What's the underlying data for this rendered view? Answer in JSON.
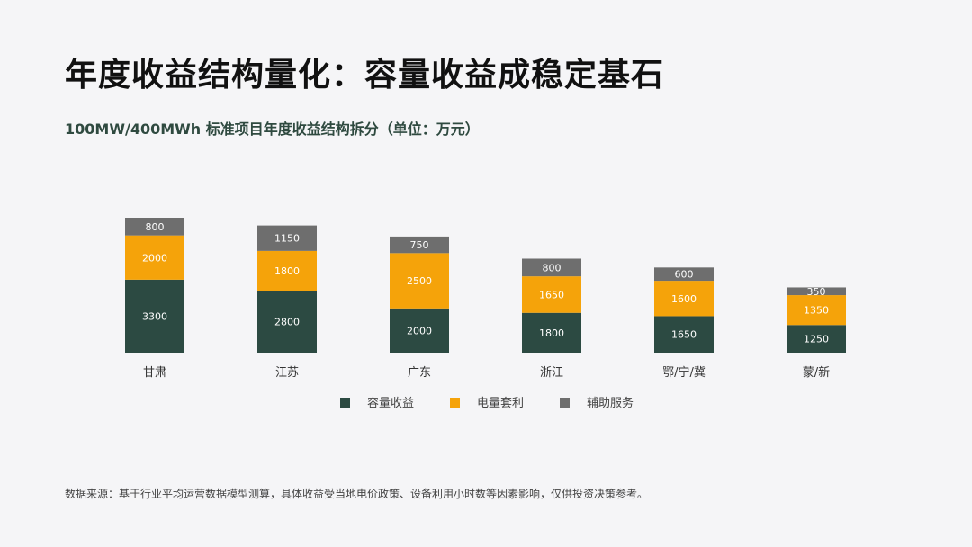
{
  "title": "年度收益结构量化：容量收益成稳定基石",
  "subtitle": "100MW/400MWh 标准项目年度收益结构拆分（单位：万元）",
  "footer": "数据来源：基于行业平均运营数据模型测算，具体收益受当地电价政策、设备利用小时数等因素影响，仅供投资决策参考。",
  "colors": {
    "capacity": "#2c4a42",
    "arbitrage": "#f5a30a",
    "ancillary": "#6e6e6e"
  },
  "chart_data": {
    "type": "bar",
    "stacked": true,
    "categories": [
      "甘肃",
      "江苏",
      "广东",
      "浙江",
      "鄂/宁/冀",
      "蒙/新"
    ],
    "series": [
      {
        "name": "容量收益",
        "values": [
          3300,
          2800,
          2000,
          1800,
          1650,
          1250
        ]
      },
      {
        "name": "电量套利",
        "values": [
          2000,
          1800,
          2500,
          1650,
          1600,
          1350
        ]
      },
      {
        "name": "辅助服务",
        "values": [
          800,
          1150,
          750,
          800,
          600,
          350
        ]
      }
    ],
    "legend_position": "bottom",
    "grid": false
  }
}
